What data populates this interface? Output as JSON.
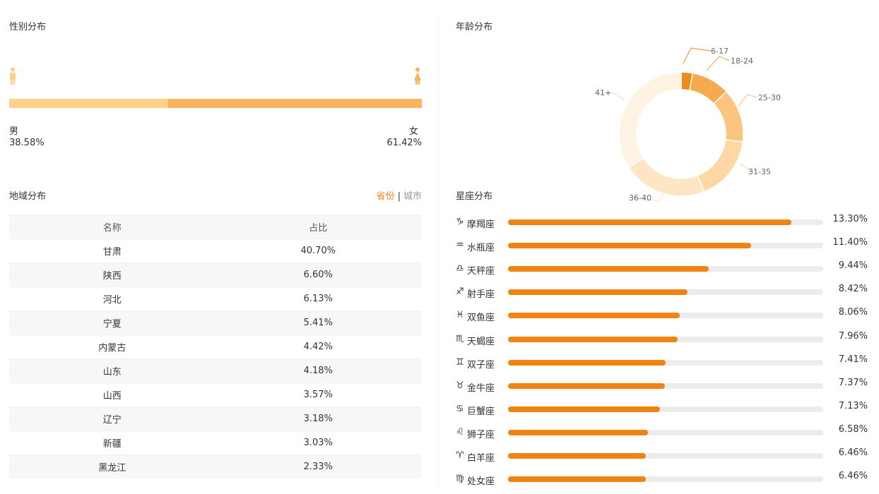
{
  "gender": {
    "title": "性别分布",
    "male_label": "男",
    "male_pct": "38.58%",
    "male_value": 38.58,
    "female_label": "女",
    "female_pct": "61.42%",
    "female_value": 61.42,
    "male_icon": "male-person-icon",
    "female_icon": "female-person-icon",
    "colors": {
      "male": "#ffd08a",
      "female": "#f8b35d"
    }
  },
  "region": {
    "title": "地域分布",
    "switch": {
      "province": "省份",
      "sep": "|",
      "city": "城市"
    },
    "headers": [
      "名称",
      "占比"
    ],
    "rows": [
      [
        "甘肃",
        "40.70%"
      ],
      [
        "陕西",
        "6.60%"
      ],
      [
        "河北",
        "6.13%"
      ],
      [
        "宁夏",
        "5.41%"
      ],
      [
        "内蒙古",
        "4.42%"
      ],
      [
        "山东",
        "4.18%"
      ],
      [
        "山西",
        "3.57%"
      ],
      [
        "辽宁",
        "3.18%"
      ],
      [
        "新疆",
        "3.03%"
      ],
      [
        "黑龙江",
        "2.33%"
      ]
    ]
  },
  "age": {
    "title": "年龄分布",
    "chart_data": {
      "type": "pie",
      "categories": [
        "6-17",
        "18-24",
        "25-30",
        "31-35",
        "36-40",
        "41+"
      ],
      "values": [
        3,
        10,
        14,
        17,
        22,
        34
      ],
      "colors": [
        "#f18a1c",
        "#f7a94e",
        "#fcc57f",
        "#fed7a2",
        "#fee5c3",
        "#fff4e3"
      ]
    }
  },
  "zodiac": {
    "title": "星座分布",
    "bar_color": "#f08412",
    "items": [
      {
        "symbol": "♑",
        "icon": "capricorn-icon",
        "name": "摩羯座",
        "pct": "13.30%",
        "value": 13.3
      },
      {
        "symbol": "♒",
        "icon": "aquarius-icon",
        "name": "水瓶座",
        "pct": "11.40%",
        "value": 11.4
      },
      {
        "symbol": "♎",
        "icon": "libra-icon",
        "name": "天秤座",
        "pct": "9.44%",
        "value": 9.44
      },
      {
        "symbol": "♐",
        "icon": "sagittarius-icon",
        "name": "射手座",
        "pct": "8.42%",
        "value": 8.42
      },
      {
        "symbol": "♓",
        "icon": "pisces-icon",
        "name": "双鱼座",
        "pct": "8.06%",
        "value": 8.06
      },
      {
        "symbol": "♏",
        "icon": "scorpio-icon",
        "name": "天蝎座",
        "pct": "7.96%",
        "value": 7.96
      },
      {
        "symbol": "♊",
        "icon": "gemini-icon",
        "name": "双子座",
        "pct": "7.41%",
        "value": 7.41
      },
      {
        "symbol": "♉",
        "icon": "taurus-icon",
        "name": "金牛座",
        "pct": "7.37%",
        "value": 7.37
      },
      {
        "symbol": "♋",
        "icon": "cancer-icon",
        "name": "巨蟹座",
        "pct": "7.13%",
        "value": 7.13
      },
      {
        "symbol": "♌",
        "icon": "leo-icon",
        "name": "狮子座",
        "pct": "6.58%",
        "value": 6.58
      },
      {
        "symbol": "♈",
        "icon": "aries-icon",
        "name": "白羊座",
        "pct": "6.46%",
        "value": 6.46
      },
      {
        "symbol": "♍",
        "icon": "virgo-icon",
        "name": "处女座",
        "pct": "6.46%",
        "value": 6.46
      }
    ]
  }
}
